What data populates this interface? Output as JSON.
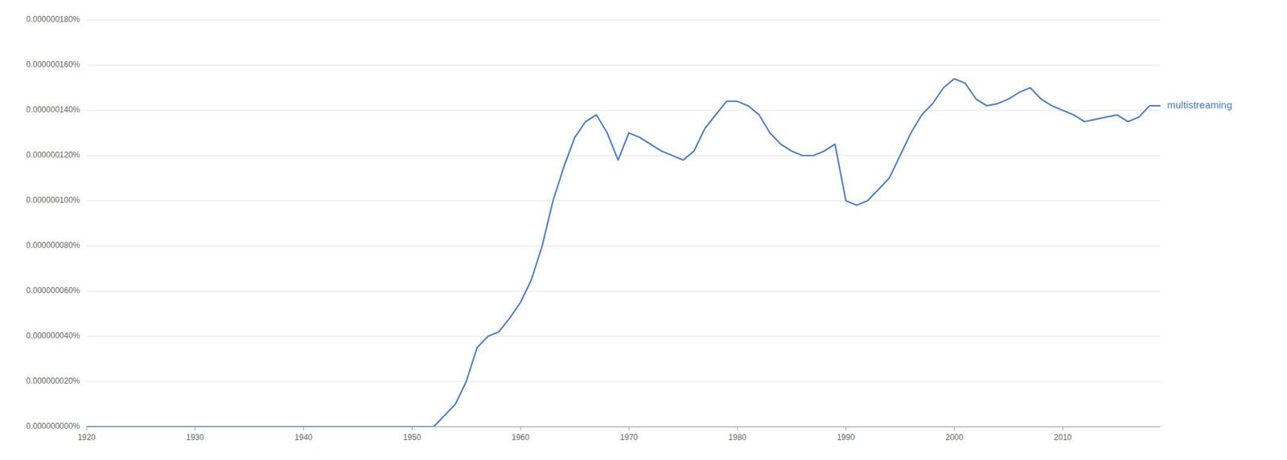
{
  "chart_data": {
    "type": "line",
    "x": [
      1920,
      1921,
      1922,
      1923,
      1924,
      1925,
      1926,
      1927,
      1928,
      1929,
      1930,
      1931,
      1932,
      1933,
      1934,
      1935,
      1936,
      1937,
      1938,
      1939,
      1940,
      1941,
      1942,
      1943,
      1944,
      1945,
      1946,
      1947,
      1948,
      1949,
      1950,
      1951,
      1952,
      1953,
      1954,
      1955,
      1956,
      1957,
      1958,
      1959,
      1960,
      1961,
      1962,
      1963,
      1964,
      1965,
      1966,
      1967,
      1968,
      1969,
      1970,
      1971,
      1972,
      1973,
      1974,
      1975,
      1976,
      1977,
      1978,
      1979,
      1980,
      1981,
      1982,
      1983,
      1984,
      1985,
      1986,
      1987,
      1988,
      1989,
      1990,
      1991,
      1992,
      1993,
      1994,
      1995,
      1996,
      1997,
      1998,
      1999,
      2000,
      2001,
      2002,
      2003,
      2004,
      2005,
      2006,
      2007,
      2008,
      2009,
      2010,
      2011,
      2012,
      2013,
      2014,
      2015,
      2016,
      2017,
      2018,
      2019
    ],
    "series": [
      {
        "name": "multistreaming",
        "color": "#4a7cc7",
        "values": [
          0.0,
          0.0,
          0.0,
          0.0,
          0.0,
          0.0,
          0.0,
          0.0,
          0.0,
          0.0,
          0.0,
          0.0,
          0.0,
          0.0,
          0.0,
          0.0,
          0.0,
          0.0,
          0.0,
          0.0,
          0.0,
          0.0,
          0.0,
          0.0,
          0.0,
          0.0,
          0.0,
          0.0,
          0.0,
          0.0,
          0.0,
          0.0,
          0.0,
          5e-11,
          1e-10,
          2e-10,
          3.5e-10,
          4e-10,
          4.2e-10,
          4.8e-10,
          5.5e-10,
          6.5e-10,
          8e-10,
          1e-09,
          1.15e-09,
          1.28e-09,
          1.35e-09,
          1.38e-09,
          1.3e-09,
          1.18e-09,
          1.3e-09,
          1.28e-09,
          1.25e-09,
          1.22e-09,
          1.2e-09,
          1.18e-09,
          1.22e-09,
          1.32e-09,
          1.38e-09,
          1.44e-09,
          1.44e-09,
          1.42e-09,
          1.38e-09,
          1.3e-09,
          1.25e-09,
          1.22e-09,
          1.2e-09,
          1.2e-09,
          1.22e-09,
          1.25e-09,
          1e-09,
          9.8e-10,
          1e-09,
          1.05e-09,
          1.1e-09,
          1.2e-09,
          1.3e-09,
          1.38e-09,
          1.43e-09,
          1.5e-09,
          1.54e-09,
          1.52e-09,
          1.45e-09,
          1.42e-09,
          1.43e-09,
          1.45e-09,
          1.48e-09,
          1.5e-09,
          1.45e-09,
          1.42e-09,
          1.4e-09,
          1.38e-09,
          1.35e-09,
          1.36e-09,
          1.37e-09,
          1.38e-09,
          1.35e-09,
          1.37e-09,
          1.42e-09,
          1.42e-09
        ]
      }
    ],
    "xlim": [
      1920,
      2019
    ],
    "xticks": [
      1920,
      1930,
      1940,
      1950,
      1960,
      1970,
      1980,
      1990,
      2000,
      2010
    ],
    "ylim": [
      0.0,
      1.8e-09
    ],
    "yticks": [
      {
        "value": 0.0,
        "label": "0.000000000%"
      },
      {
        "value": 2e-10,
        "label": "0.000000020%"
      },
      {
        "value": 4e-10,
        "label": "0.000000040%"
      },
      {
        "value": 6e-10,
        "label": "0.000000060%"
      },
      {
        "value": 8e-10,
        "label": "0.000000080%"
      },
      {
        "value": 1e-09,
        "label": "0.000000100%"
      },
      {
        "value": 1.2e-09,
        "label": "0.000000120%"
      },
      {
        "value": 1.4e-09,
        "label": "0.000000140%"
      },
      {
        "value": 1.6e-09,
        "label": "0.000000160%"
      },
      {
        "value": 1.8e-09,
        "label": "0.000000180%"
      }
    ],
    "grid": true
  }
}
